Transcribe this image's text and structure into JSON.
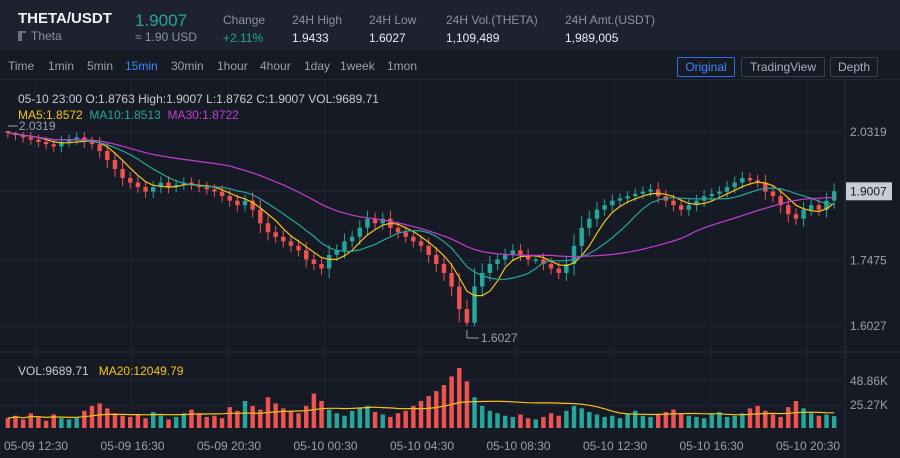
{
  "header": {
    "symbol": "THETA/USDT",
    "coin_name": "Theta",
    "last_price": "1.9007",
    "last_usd": "≈ 1.90 USD",
    "stats": [
      {
        "label": "Change",
        "value": "+2.11%",
        "up": true
      },
      {
        "label": "24H High",
        "value": "1.9433"
      },
      {
        "label": "24H Low",
        "value": "1.6027"
      },
      {
        "label": "24H Vol.(THETA)",
        "value": "1,109,489"
      },
      {
        "label": "24H Amt.(USDT)",
        "value": "1,989,005"
      }
    ]
  },
  "toolbar": {
    "timeframes": [
      "Time",
      "1min",
      "5min",
      "15min",
      "30min",
      "1hour",
      "4hour",
      "1day",
      "1week",
      "1mon"
    ],
    "active_timeframe": "15min",
    "views": [
      "Original",
      "TradingView",
      "Depth"
    ],
    "active_view": "Original"
  },
  "chart": {
    "ohlc_text": "05-10 23:00   O:1.8763  High:1.9007   L:1.8762  C:1.9007  VOL:9689.71",
    "ma5": "MA5:1.8572",
    "ma10": "MA10:1.8513",
    "ma30": "MA30:1.8722",
    "vol_text": "VOL:9689.71",
    "ma20_vol": "MA20:12049.79",
    "high_marker": "2.0319",
    "low_marker": "1.6027",
    "last_price_tag": "1.9007",
    "price_ticks": [
      "2.0319",
      "1.7475",
      "1.6027"
    ],
    "volume_ticks": [
      "48.86K",
      "25.27K"
    ],
    "time_ticks": [
      "05-09 12:30",
      "05-09 16:30",
      "05-09 20:30",
      "05-10 00:30",
      "05-10 04:30",
      "05-10 08:30",
      "05-10 12:30",
      "05-10 16:30",
      "05-10 20:30"
    ],
    "colors": {
      "up": "#26a69a",
      "down": "#ef5350",
      "ma5": "#f5c518",
      "ma10": "#26a69a",
      "ma30": "#c43ed3",
      "vol_ma": "#f5c518",
      "accent": "#3d8bfd"
    }
  },
  "chart_data": {
    "type": "candlestick",
    "ylim": [
      1.6027,
      2.0319
    ],
    "closes": [
      2.03,
      2.025,
      2.02,
      2.015,
      2.01,
      2.005,
      2.0,
      2.01,
      2.015,
      2.02,
      2.01,
      2.005,
      1.99,
      1.97,
      1.95,
      1.93,
      1.92,
      1.91,
      1.9,
      1.91,
      1.92,
      1.91,
      1.915,
      1.92,
      1.915,
      1.91,
      1.905,
      1.9,
      1.89,
      1.88,
      1.87,
      1.88,
      1.86,
      1.83,
      1.81,
      1.8,
      1.79,
      1.78,
      1.77,
      1.75,
      1.74,
      1.73,
      1.76,
      1.77,
      1.79,
      1.8,
      1.82,
      1.84,
      1.83,
      1.84,
      1.82,
      1.81,
      1.8,
      1.79,
      1.78,
      1.76,
      1.74,
      1.72,
      1.69,
      1.64,
      1.61,
      1.69,
      1.72,
      1.74,
      1.75,
      1.76,
      1.77,
      1.76,
      1.75,
      1.75,
      1.74,
      1.73,
      1.72,
      1.74,
      1.78,
      1.82,
      1.84,
      1.86,
      1.87,
      1.88,
      1.885,
      1.89,
      1.895,
      1.9,
      1.905,
      1.89,
      1.88,
      1.87,
      1.86,
      1.87,
      1.88,
      1.89,
      1.895,
      1.9,
      1.91,
      1.92,
      1.93,
      1.925,
      1.92,
      1.9,
      1.89,
      1.87,
      1.85,
      1.84,
      1.86,
      1.87,
      1.86,
      1.88,
      1.9007
    ],
    "volumes_k": [
      8,
      10,
      7,
      12,
      9,
      6,
      11,
      8,
      7,
      9,
      14,
      18,
      20,
      16,
      12,
      10,
      9,
      11,
      8,
      13,
      10,
      7,
      9,
      12,
      15,
      11,
      9,
      10,
      8,
      17,
      14,
      22,
      18,
      15,
      25,
      20,
      16,
      14,
      12,
      18,
      28,
      22,
      15,
      12,
      10,
      14,
      16,
      18,
      13,
      11,
      9,
      12,
      14,
      18,
      22,
      26,
      30,
      35,
      42,
      48.86,
      38,
      25,
      18,
      14,
      12,
      10,
      9,
      11,
      8,
      7,
      9,
      12,
      10,
      14,
      18,
      16,
      13,
      11,
      9,
      10,
      8,
      12,
      14,
      10,
      9,
      11,
      13,
      15,
      12,
      10,
      9,
      8,
      11,
      13,
      9,
      10,
      12,
      16,
      18,
      14,
      11,
      9,
      17,
      22,
      16,
      12,
      10,
      11,
      9.69
    ]
  }
}
